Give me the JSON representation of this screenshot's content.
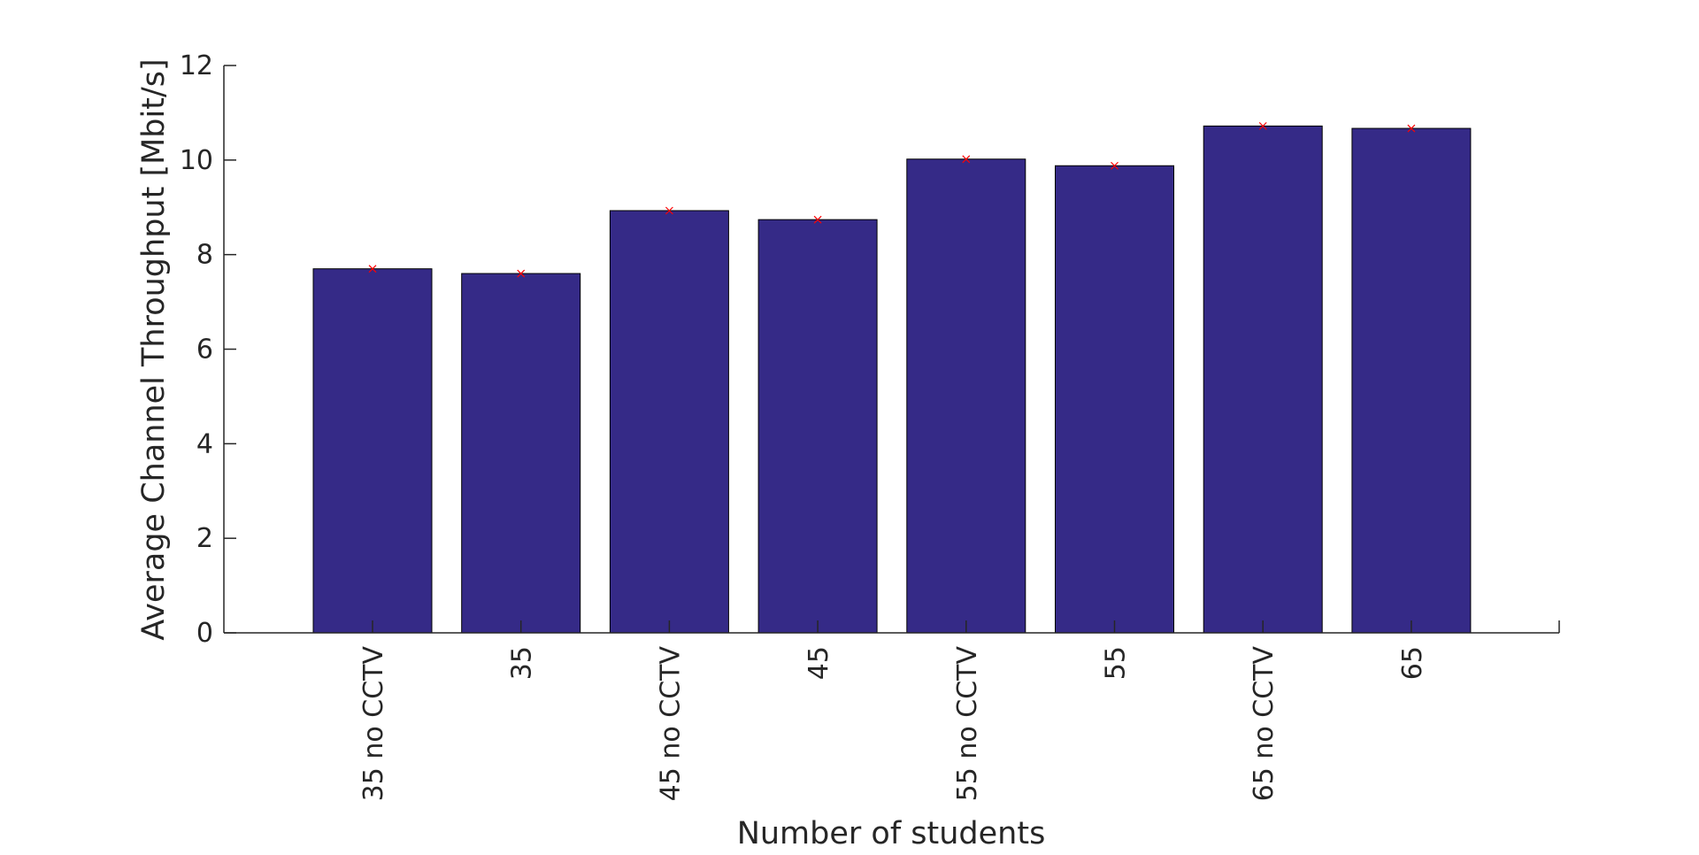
{
  "chart_data": {
    "type": "bar",
    "title": "",
    "xlabel": "Number of students",
    "ylabel": "Average Channel Throughput [Mbit/s]",
    "categories": [
      "35 no CCTV",
      "35",
      "45 no CCTV",
      "45",
      "55 no CCTV",
      "55",
      "65 no CCTV",
      "65"
    ],
    "values": [
      7.7,
      7.6,
      8.93,
      8.74,
      10.02,
      9.88,
      10.72,
      10.67
    ],
    "ylim": [
      0,
      12
    ],
    "yticks": [
      "0",
      "2",
      "4",
      "6",
      "8",
      "10",
      "12"
    ],
    "grid": false,
    "legend": "none",
    "bar_color": "#352a87",
    "marker_color": "#ff0000"
  }
}
